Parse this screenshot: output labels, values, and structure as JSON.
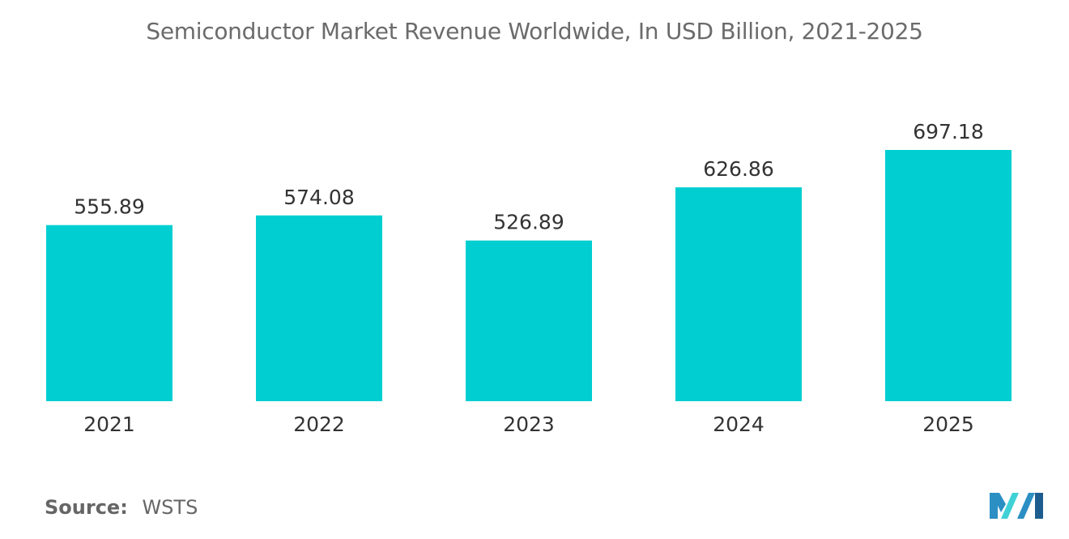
{
  "chart_data": {
    "type": "bar",
    "title": "Semiconductor Market Revenue Worldwide, In USD Billion, 2021-2025",
    "categories": [
      "2021",
      "2022",
      "2023",
      "2024",
      "2025"
    ],
    "values": [
      555.89,
      574.08,
      526.89,
      626.86,
      697.18
    ],
    "value_labels": [
      "555.89",
      "574.08",
      "526.89",
      "626.86",
      "697.18"
    ],
    "xlabel": "",
    "ylabel": "",
    "ylim": [
      0,
      697.18
    ],
    "grid": false,
    "legend": "none",
    "bar_color": "#00CED1"
  },
  "source": {
    "label": "Source:",
    "value": "WSTS"
  },
  "logo": {
    "icon": "mordor-intelligence-logo-icon",
    "colors": [
      "#2b8fc4",
      "#3fd1d6",
      "#1d5c8f"
    ]
  }
}
